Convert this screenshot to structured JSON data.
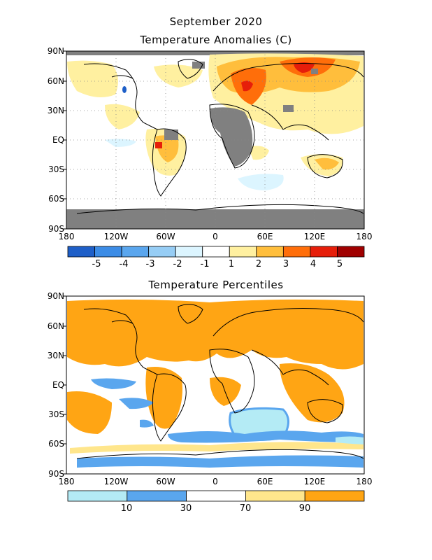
{
  "titles": {
    "line1": "September 2020",
    "line2": "Temperature Anomalies (C)",
    "line3": "Temperature Percentiles"
  },
  "axes": {
    "lat_labels": [
      "90N",
      "60N",
      "30N",
      "EQ",
      "30S",
      "60S",
      "90S"
    ],
    "lon_labels": [
      "180",
      "120W",
      "60W",
      "0",
      "60E",
      "120E",
      "180"
    ]
  },
  "anomaly_scale": {
    "labels": [
      "-5",
      "-4",
      "-3",
      "-2",
      "-1",
      "1",
      "2",
      "3",
      "4",
      "5"
    ],
    "colors": [
      "#1e5fc8",
      "#3c8ce6",
      "#5aa6ee",
      "#96cdf5",
      "#dcf5ff",
      "#ffffff",
      "#fff0a0",
      "#ffbe3c",
      "#ff6e0a",
      "#e61e0a",
      "#a00000"
    ]
  },
  "percentile_scale": {
    "labels": [
      "10",
      "30",
      "70",
      "90"
    ],
    "colors": [
      "#b4ebf5",
      "#5aa6ee",
      "#ffffff",
      "#ffe68c",
      "#ffa514"
    ]
  },
  "colors": {
    "missing": "#808080",
    "coast": "#000000"
  }
}
